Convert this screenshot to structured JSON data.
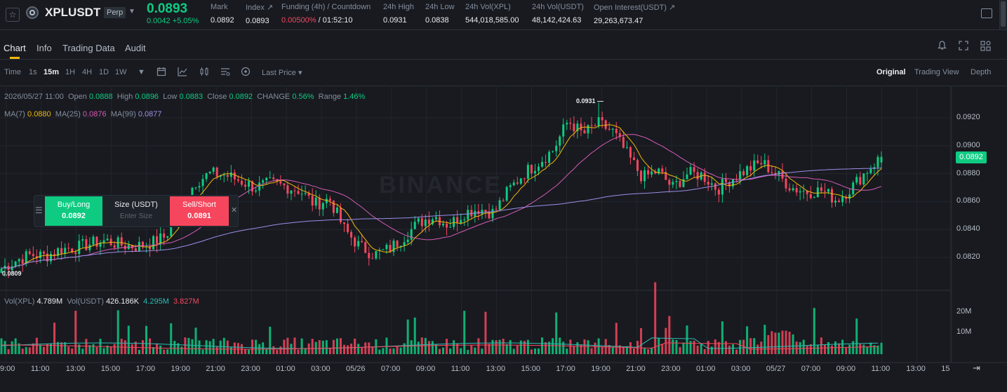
{
  "header": {
    "symbol": "XPLUSDT",
    "contract_type": "Perp",
    "last_price": "0.0893",
    "price_change": "0.0042 +5.05%",
    "stats": [
      {
        "label": "Mark",
        "value": "0.0892"
      },
      {
        "label": "Index ↗",
        "value": "0.0893"
      },
      {
        "label": "Funding (4h) / Countdown",
        "value_rate": "0.00500%",
        "value_countdown": "/ 01:52:10"
      },
      {
        "label": "24h High",
        "value": "0.0931"
      },
      {
        "label": "24h Low",
        "value": "0.0838"
      },
      {
        "label": "24h Vol(XPL)",
        "value": "544,018,585.00"
      },
      {
        "label": "24h Vol(USDT)",
        "value": "48,142,424.63"
      },
      {
        "label": "Open Interest(USDT) ↗",
        "value": "29,263,673.47"
      }
    ]
  },
  "tabs": [
    "Chart",
    "Info",
    "Trading Data",
    "Audit"
  ],
  "active_tab": "Chart",
  "toolbar": {
    "intervals": [
      "Time",
      "1s",
      "15m",
      "1H",
      "4H",
      "1D",
      "1W"
    ],
    "active_interval": "15m",
    "price_type": "Last Price",
    "views": [
      "Original",
      "Trading View",
      "Depth"
    ],
    "active_view": "Original"
  },
  "ohlc": {
    "date": "2026/05/27 11:00",
    "open_label": "Open",
    "open": "0.0888",
    "high_label": "High",
    "high": "0.0896",
    "low_label": "Low",
    "low": "0.0883",
    "close_label": "Close",
    "close": "0.0892",
    "change_label": "CHANGE",
    "change": "0.56%",
    "range_label": "Range",
    "range": "1.46%"
  },
  "ma": {
    "ma7_label": "MA(7)",
    "ma7": "0.0880",
    "ma25_label": "MA(25)",
    "ma25": "0.0876",
    "ma99_label": "MA(99)",
    "ma99": "0.0877"
  },
  "volume": {
    "vol_xpl_label": "Vol(XPL)",
    "vol_xpl": "4.789M",
    "vol_usdt_label": "Vol(USDT)",
    "vol_usdt": "426.186K",
    "ma1": "4.295M",
    "ma2": "3.827M"
  },
  "order_panel": {
    "buy_label": "Buy/Long",
    "buy_price": "0.0892",
    "size_label": "Size (USDT)",
    "size_placeholder": "Enter Size",
    "sell_label": "Sell/Short",
    "sell_price": "0.0891"
  },
  "current_price_tag": "0.0892",
  "high_marker": "0.0931",
  "low_marker": "0.0809",
  "watermark": "BINANCE",
  "colors": {
    "up": "#0ecb81",
    "down": "#f6465d",
    "ma7": "#f0b90b",
    "ma25": "#d65cb5",
    "ma99": "#9d8ee8",
    "accent": "#f0b90b"
  },
  "chart_data": {
    "type": "candlestick",
    "interval": "15m",
    "y_ticks": [
      "0.0920",
      "0.0900",
      "0.0880",
      "0.0860",
      "0.0840",
      "0.0820"
    ],
    "ylim": [
      0.0805,
      0.0933
    ],
    "volume_ticks": [
      "20M",
      "10M"
    ],
    "x_ticks": [
      "9:00",
      "11:00",
      "13:00",
      "15:00",
      "17:00",
      "19:00",
      "21:00",
      "23:00",
      "01:00",
      "03:00",
      "05/26",
      "07:00",
      "09:00",
      "11:00",
      "13:00",
      "15:00",
      "17:00",
      "19:00",
      "21:00",
      "23:00",
      "01:00",
      "03:00",
      "05/27",
      "07:00",
      "09:00",
      "11:00",
      "13:00",
      "15"
    ],
    "close_path": [
      0.0812,
      0.0818,
      0.0822,
      0.0821,
      0.0826,
      0.0827,
      0.083,
      0.0832,
      0.0829,
      0.0828,
      0.083,
      0.0835,
      0.0856,
      0.0874,
      0.088,
      0.0879,
      0.0875,
      0.087,
      0.0873,
      0.0871,
      0.0868,
      0.0858,
      0.0862,
      0.084,
      0.0828,
      0.0822,
      0.0826,
      0.0835,
      0.0845,
      0.085,
      0.0843,
      0.0852,
      0.0855,
      0.0852,
      0.0868,
      0.088,
      0.0888,
      0.0897,
      0.0918,
      0.0908,
      0.0916,
      0.091,
      0.0893,
      0.0877,
      0.0882,
      0.087,
      0.088,
      0.0879,
      0.0869,
      0.0877,
      0.0883,
      0.0888,
      0.0879,
      0.087,
      0.0867,
      0.0868,
      0.0861,
      0.087,
      0.0882,
      0.0892
    ],
    "ma99_start": 0.0819,
    "ma99_end": 0.0877
  }
}
